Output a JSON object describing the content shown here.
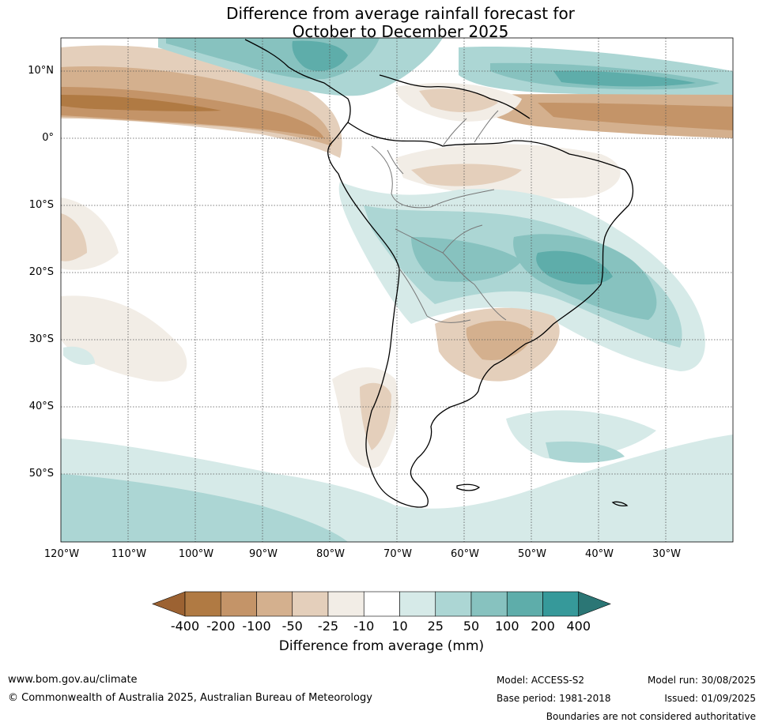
{
  "title_line1": "Difference from average rainfall forecast for",
  "title_line2": "October to December 2025",
  "lat_labels": [
    "10°N",
    "0°",
    "10°S",
    "20°S",
    "30°S",
    "40°S",
    "50°S"
  ],
  "lon_labels": [
    "120°W",
    "110°W",
    "100°W",
    "90°W",
    "80°W",
    "70°W",
    "60°W",
    "50°W",
    "40°W",
    "30°W"
  ],
  "colorbar": {
    "ticks": [
      "-400",
      "-200",
      "-100",
      "-50",
      "-25",
      "-10",
      "10",
      "25",
      "50",
      "100",
      "200",
      "400"
    ],
    "colors": [
      "#9c6232",
      "#b07a43",
      "#c49468",
      "#d4b08e",
      "#e4cfbb",
      "#f2ede6",
      "#ffffff",
      "#d6eae8",
      "#acd6d4",
      "#87c2bf",
      "#5eadaa",
      "#36999a",
      "#2b7675"
    ],
    "label": "Difference from average (mm)"
  },
  "footer": {
    "website": "www.bom.gov.au/climate",
    "copyright": "© Commonwealth of Australia 2025, Australian Bureau of Meteorology",
    "model": "Model: ACCESS-S2",
    "base_period": "Base period: 1981-2018",
    "model_run": "Model run: 30/08/2025",
    "issued": "Issued: 01/09/2025",
    "disclaimer": "Boundaries are not considered authoritative"
  }
}
